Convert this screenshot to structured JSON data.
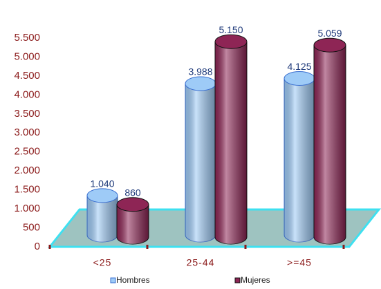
{
  "chart_data": {
    "type": "bar",
    "categories": [
      "<25",
      "25-44",
      ">=45"
    ],
    "series": [
      {
        "name": "Hombres",
        "color": "#9ecbf7",
        "values": [
          1040,
          3988,
          4125
        ],
        "value_labels": [
          "1.040",
          "3.988",
          "4.125"
        ]
      },
      {
        "name": "Mujeres",
        "color": "#8e2555",
        "values": [
          860,
          5150,
          5059
        ],
        "value_labels": [
          "860",
          "5.150",
          "5.059"
        ]
      }
    ],
    "ylim": [
      0,
      5500
    ],
    "yticks": [
      0,
      500,
      {
        "value": 1000,
        "label": "1.000"
      },
      {
        "value": 1500,
        "label": "1.500"
      },
      {
        "value": 2000,
        "label": "2.000"
      },
      {
        "value": 2500,
        "label": "2.500"
      },
      {
        "value": 3000,
        "label": "3.000"
      },
      {
        "value": 3500,
        "label": "3.500"
      },
      {
        "value": 4000,
        "label": "4.000"
      },
      {
        "value": 4500,
        "label": "4.500"
      },
      {
        "value": 5000,
        "label": "5.000"
      },
      {
        "value": 5500,
        "label": "5.500"
      }
    ],
    "legend": "bottom"
  }
}
